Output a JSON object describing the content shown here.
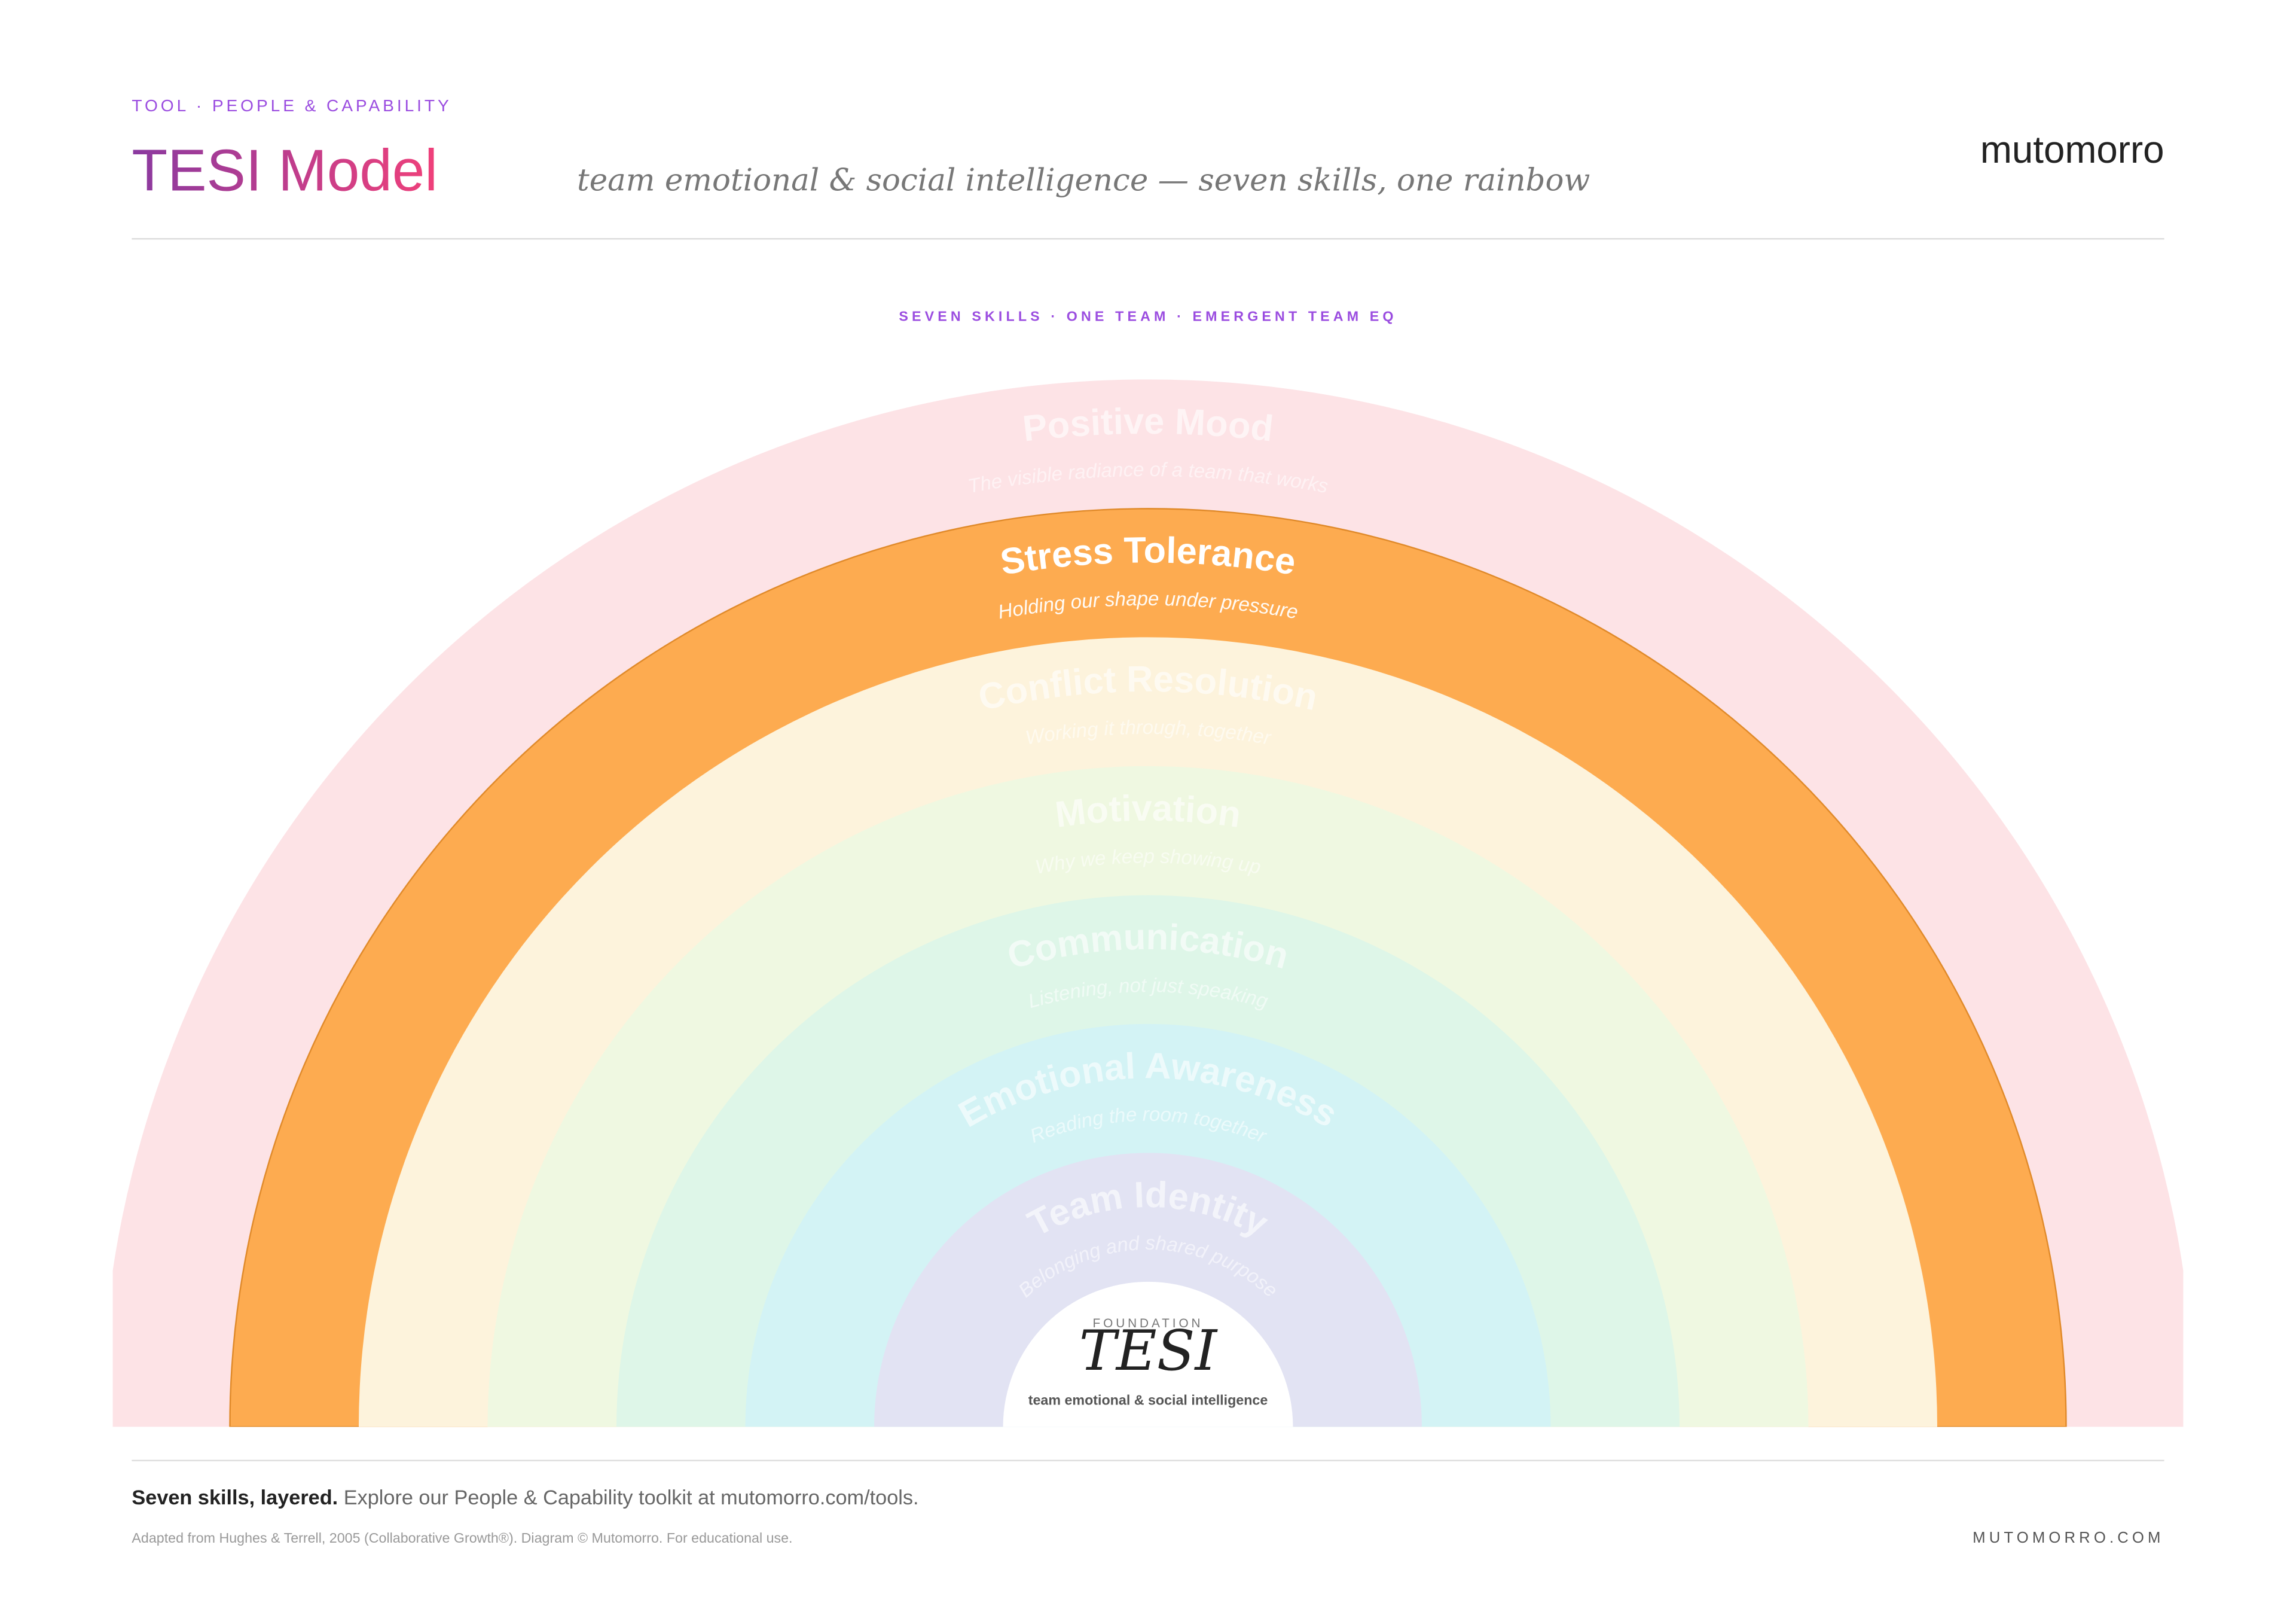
{
  "header": {
    "eyebrow": "TOOL · PEOPLE & CAPABILITY",
    "title": "TESI Model",
    "subtitle": "team emotional & social intelligence — seven skills, one rainbow",
    "brand": "mutomorro"
  },
  "diagram": {
    "caption": "SEVEN SKILLS · ONE TEAM · EMERGENT TEAM EQ",
    "layers": [
      {
        "name": "Positive Mood",
        "description": "The visible radiance of a team that works",
        "color": "#fde3e6"
      },
      {
        "name": "Stress Tolerance",
        "description": "Holding our shape under pressure",
        "color": "#fdab50"
      },
      {
        "name": "Conflict Resolution",
        "description": "Working it through, together",
        "color": "#fdf3dc"
      },
      {
        "name": "Motivation",
        "description": "Why we keep showing up",
        "color": "#eff8e1"
      },
      {
        "name": "Communication",
        "description": "Listening, not just speaking",
        "color": "#def6e8"
      },
      {
        "name": "Emotional Awareness",
        "description": "Reading the room together",
        "color": "#d3f3f5"
      },
      {
        "name": "Team Identity",
        "description": "Belonging and shared purpose",
        "color": "#e2e3f3"
      }
    ],
    "center": {
      "kicker": "FOUNDATION",
      "title": "TESI",
      "subtitle": "team emotional & social intelligence"
    }
  },
  "footer": {
    "lead": "Seven skills, layered.",
    "text": "Explore our People & Capability toolkit at mutomorro.com/tools.",
    "credit": "Adapted from Hughes & Terrell, 2005 (Collaborative Growth®). Diagram © Mutomorro. For educational use.",
    "site": "MUTOMORRO.COM"
  }
}
